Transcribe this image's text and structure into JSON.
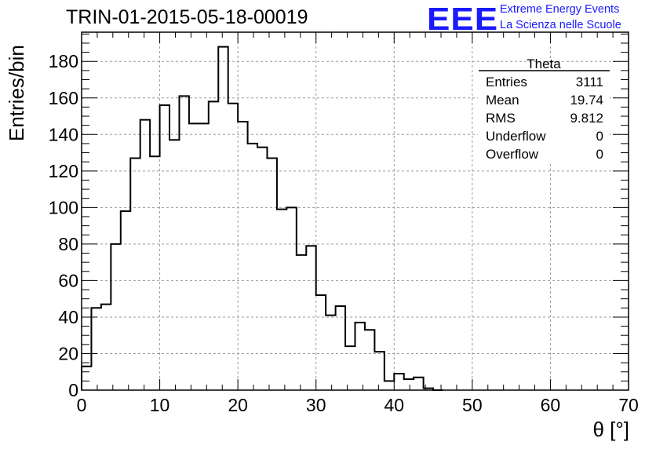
{
  "header": {
    "run_title": "TRIN-01-2015-05-18-00019",
    "logo_text": "EEE",
    "logo_line1": "Extreme Energy Events",
    "logo_line2": "La Scienza nelle Scuole",
    "logo_color": "#1a1aff"
  },
  "stats_box": {
    "title": "Theta",
    "rows": [
      {
        "label": "Entries",
        "value": "3111"
      },
      {
        "label": "Mean",
        "value": "19.74"
      },
      {
        "label": "RMS",
        "value": "9.812"
      },
      {
        "label": "Underflow",
        "value": "0"
      },
      {
        "label": "Overflow",
        "value": "0"
      }
    ]
  },
  "chart_data": {
    "type": "histogram",
    "title": "TRIN-01-2015-05-18-00019",
    "xlabel": "θ [°]",
    "ylabel": "Entries/bin",
    "xlim": [
      0,
      70
    ],
    "ylim": [
      0,
      196
    ],
    "bin_width": 1.25,
    "bin_edges_start": 0,
    "grid": true,
    "x_ticks": [
      0,
      10,
      20,
      30,
      40,
      50,
      60,
      70
    ],
    "y_ticks": [
      0,
      20,
      40,
      60,
      80,
      100,
      120,
      140,
      160,
      180
    ],
    "values": [
      13,
      45,
      47,
      80,
      98,
      127,
      148,
      128,
      156,
      137,
      161,
      146,
      146,
      158,
      188,
      157,
      147,
      135,
      133,
      127,
      99,
      100,
      74,
      79,
      52,
      41,
      46,
      24,
      37,
      33,
      21,
      5,
      9,
      6,
      7,
      1,
      0
    ]
  }
}
